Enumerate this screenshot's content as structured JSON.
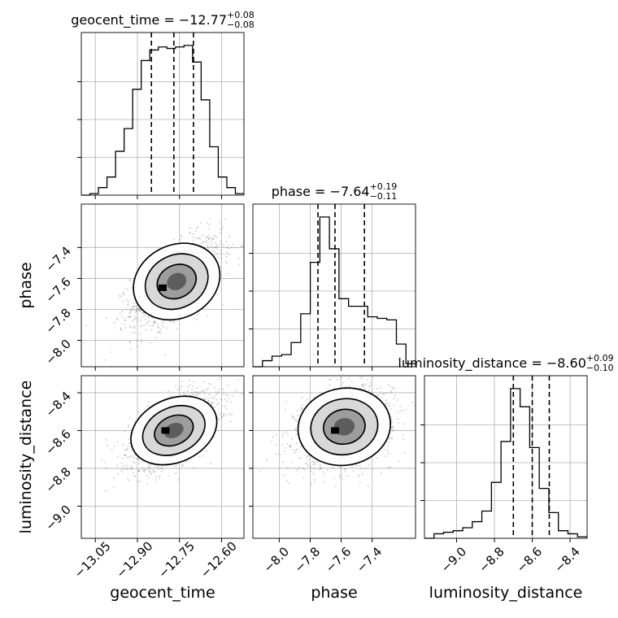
{
  "chart_data": {
    "type": "corner",
    "grid": true,
    "params": [
      {
        "name": "geocent_time",
        "median": -12.77,
        "plus": 0.08,
        "minus": 0.08,
        "quantiles": [
          -12.85,
          -12.77,
          -12.7
        ],
        "range": [
          -13.1,
          -12.52
        ],
        "ticks": [
          -13.05,
          -12.9,
          -12.75,
          -12.6
        ],
        "tick_labels": [
          "−13.05",
          "−12.90",
          "−12.75",
          "−12.60"
        ],
        "title_lhs": "geocent_time = −12.77",
        "title_plus": "+0.08",
        "title_minus": "−0.08"
      },
      {
        "name": "phase",
        "median": -7.64,
        "plus": 0.19,
        "minus": 0.11,
        "quantiles": [
          -7.75,
          -7.64,
          -7.45
        ],
        "range": [
          -8.17,
          -7.12
        ],
        "ticks": [
          -8.0,
          -7.8,
          -7.6,
          -7.4
        ],
        "tick_labels": [
          "−8.0",
          "−7.8",
          "−7.6",
          "−7.4"
        ],
        "title_lhs": "phase = −7.64",
        "title_plus": "+0.19",
        "title_minus": "−0.11"
      },
      {
        "name": "luminosity_distance",
        "median": -8.6,
        "plus": 0.09,
        "minus": 0.1,
        "quantiles": [
          -8.7,
          -8.6,
          -8.51
        ],
        "range": [
          -9.17,
          -8.31
        ],
        "ticks": [
          -9.0,
          -8.8,
          -8.6,
          -8.4
        ],
        "tick_labels": [
          "−9.0",
          "−8.8",
          "−8.6",
          "−8.4"
        ],
        "title_lhs": "luminosity_distance = −8.60",
        "title_plus": "+0.09",
        "title_minus": "−0.10"
      }
    ],
    "histograms": [
      {
        "param": "geocent_time",
        "counts": [
          0.0,
          0.01,
          0.05,
          0.12,
          0.29,
          0.44,
          0.7,
          0.89,
          0.96,
          0.98,
          0.97,
          0.98,
          0.99,
          0.88,
          0.63,
          0.32,
          0.12,
          0.05,
          0.01
        ]
      },
      {
        "param": "phase",
        "counts": [
          0.0,
          0.04,
          0.07,
          0.08,
          0.16,
          0.35,
          0.69,
          0.99,
          0.78,
          0.45,
          0.4,
          0.4,
          0.33,
          0.32,
          0.31,
          0.15,
          0.02
        ]
      },
      {
        "param": "luminosity_distance",
        "counts": [
          0.0,
          0.03,
          0.04,
          0.05,
          0.07,
          0.11,
          0.18,
          0.37,
          0.64,
          0.99,
          0.87,
          0.6,
          0.33,
          0.17,
          0.05,
          0.03,
          0.01
        ]
      }
    ],
    "pairs": [
      {
        "x": "geocent_time",
        "y": "phase",
        "center": [
          -12.76,
          -7.62
        ],
        "sd": [
          0.08,
          0.14
        ],
        "rho": 0.6,
        "peak": [
          -12.81,
          -7.66
        ]
      },
      {
        "x": "geocent_time",
        "y": "luminosity_distance",
        "center": [
          -12.77,
          -8.6
        ],
        "sd": [
          0.08,
          0.1
        ],
        "rho": 0.6,
        "peak": [
          -12.8,
          -8.6
        ]
      },
      {
        "x": "phase",
        "y": "luminosity_distance",
        "center": [
          -7.58,
          -8.58
        ],
        "sd": [
          0.15,
          0.1
        ],
        "rho": 0.25,
        "peak": [
          -7.64,
          -8.6
        ]
      }
    ]
  }
}
